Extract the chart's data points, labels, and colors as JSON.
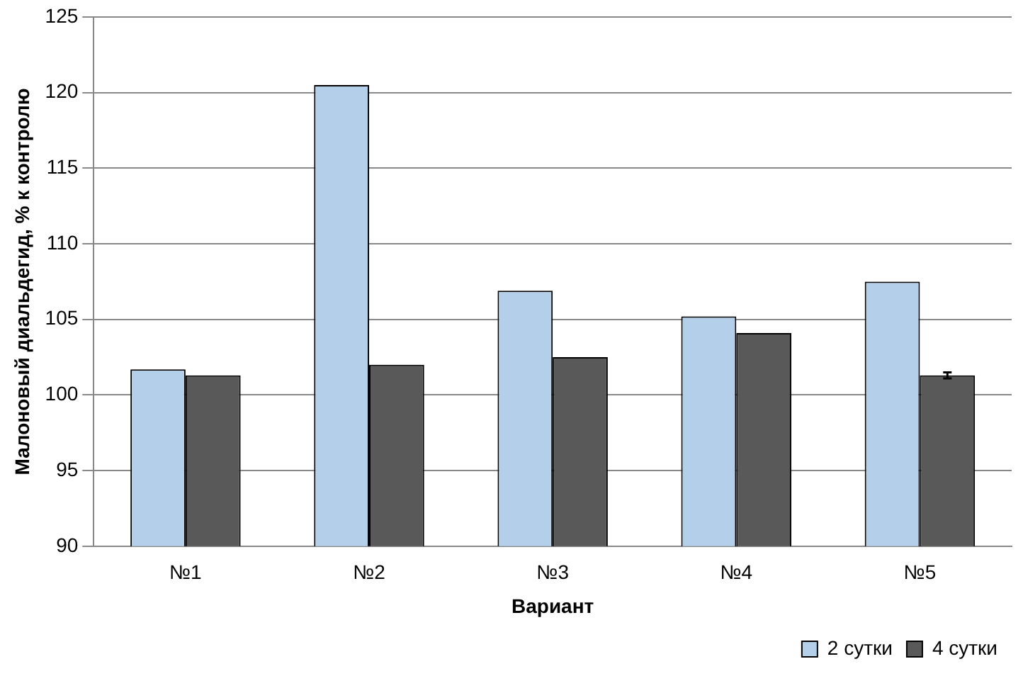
{
  "chart_data": {
    "type": "bar",
    "xlabel": "Вариант",
    "ylabel": "Малоновый диальдегид, % к контролю",
    "categories": [
      "№1",
      "№2",
      "№3",
      "№4",
      "№5"
    ],
    "series": [
      {
        "name": "2 сутки",
        "color": "#b4cfe9",
        "values": [
          101.7,
          120.5,
          106.9,
          105.2,
          107.5
        ]
      },
      {
        "name": "4 сутки",
        "color": "#595959",
        "values": [
          101.3,
          102.0,
          102.5,
          104.1,
          101.3
        ],
        "errors": [
          null,
          null,
          null,
          null,
          0.2
        ]
      }
    ],
    "ylim": [
      90,
      125
    ],
    "yticks": [
      90,
      95,
      100,
      105,
      110,
      115,
      120,
      125
    ],
    "grid": "y",
    "legend": "bottom right"
  }
}
